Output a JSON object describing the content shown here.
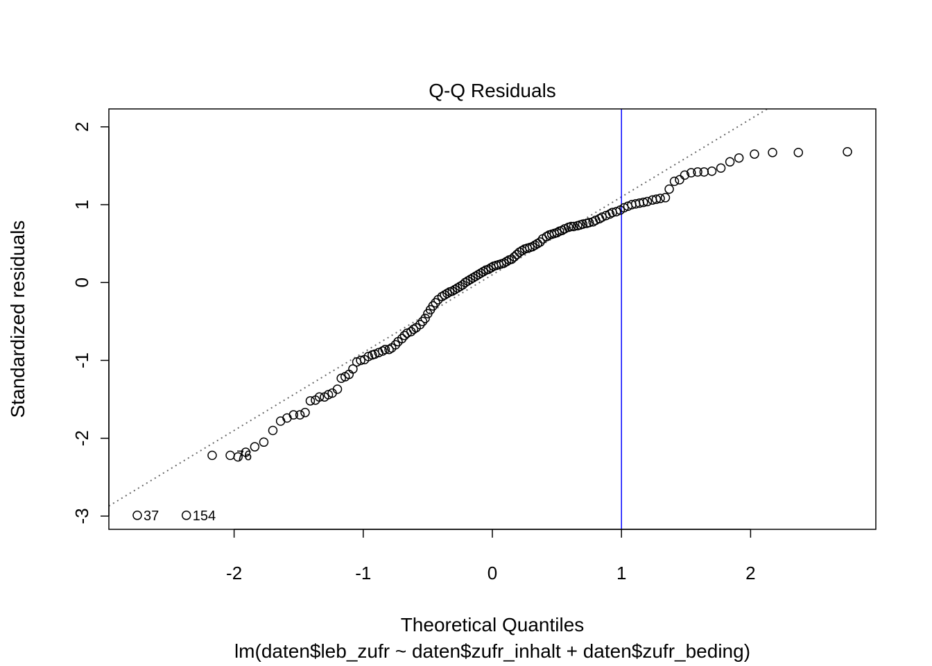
{
  "chart_data": {
    "type": "scatter",
    "title": "Q-Q Residuals",
    "xlabel": "Theoretical Quantiles",
    "ylabel": "Standardized residuals",
    "subtitle": "lm(daten$leb_zufr ~ daten$zufr_inhalt + daten$zufr_beding)",
    "xlim": [
      -2.97,
      2.97
    ],
    "ylim": [
      -3.17,
      2.23
    ],
    "xticks": [
      -2,
      -1,
      0,
      1,
      2
    ],
    "yticks": [
      -3,
      -2,
      -1,
      0,
      1,
      2
    ],
    "xtick_labels": [
      "-2",
      "-1",
      "0",
      "1",
      "2"
    ],
    "ytick_labels": [
      "-3",
      "-2",
      "-1",
      "0",
      "1",
      "2"
    ],
    "reference_line": {
      "style": "dotted",
      "color": "#666666",
      "intercept": 0.1,
      "slope": 1.0
    },
    "vline": {
      "x": 1.0,
      "color": "#0000ff"
    },
    "point_labels": [
      {
        "text": "37",
        "x": -2.75,
        "y": -2.99
      },
      {
        "text": "154",
        "x": -2.37,
        "y": -2.99
      },
      {
        "text": "76",
        "x": -2.03,
        "y": -2.22
      }
    ],
    "points": {
      "x": [
        -2.75,
        -2.37,
        -2.17,
        -2.03,
        -1.97,
        -1.91,
        -1.84,
        -1.77,
        -1.7,
        -1.64,
        -1.59,
        -1.54,
        -1.49,
        -1.45,
        -1.41,
        -1.37,
        -1.34,
        -1.3,
        -1.27,
        -1.24,
        -1.2,
        -1.17,
        -1.14,
        -1.11,
        -1.08,
        -1.05,
        -1.02,
        -0.99,
        -0.96,
        -0.93,
        -0.91,
        -0.88,
        -0.85,
        -0.83,
        -0.8,
        -0.78,
        -0.75,
        -0.73,
        -0.7,
        -0.68,
        -0.66,
        -0.63,
        -0.61,
        -0.59,
        -0.56,
        -0.54,
        -0.52,
        -0.5,
        -0.48,
        -0.46,
        -0.44,
        -0.42,
        -0.39,
        -0.37,
        -0.35,
        -0.33,
        -0.31,
        -0.29,
        -0.27,
        -0.25,
        -0.23,
        -0.21,
        -0.19,
        -0.17,
        -0.15,
        -0.13,
        -0.11,
        -0.09,
        -0.07,
        -0.05,
        -0.03,
        -0.01,
        0.01,
        0.03,
        0.05,
        0.07,
        0.09,
        0.11,
        0.13,
        0.15,
        0.17,
        0.19,
        0.21,
        0.23,
        0.25,
        0.27,
        0.29,
        0.31,
        0.33,
        0.35,
        0.37,
        0.39,
        0.42,
        0.44,
        0.46,
        0.48,
        0.5,
        0.52,
        0.54,
        0.56,
        0.59,
        0.61,
        0.63,
        0.66,
        0.68,
        0.7,
        0.73,
        0.75,
        0.78,
        0.8,
        0.83,
        0.85,
        0.88,
        0.91,
        0.93,
        0.96,
        0.99,
        1.02,
        1.05,
        1.08,
        1.11,
        1.14,
        1.17,
        1.2,
        1.24,
        1.27,
        1.3,
        1.34,
        1.37,
        1.41,
        1.45,
        1.49,
        1.54,
        1.59,
        1.64,
        1.7,
        1.77,
        1.84,
        1.91,
        2.03,
        2.17,
        2.37,
        2.75
      ],
      "y": [
        -2.99,
        -2.99,
        -2.22,
        -2.22,
        -2.24,
        -2.18,
        -2.11,
        -2.05,
        -1.9,
        -1.78,
        -1.74,
        -1.7,
        -1.7,
        -1.67,
        -1.52,
        -1.51,
        -1.47,
        -1.47,
        -1.44,
        -1.42,
        -1.37,
        -1.23,
        -1.21,
        -1.18,
        -1.11,
        -1.02,
        -1.0,
        -0.99,
        -0.95,
        -0.93,
        -0.92,
        -0.9,
        -0.88,
        -0.86,
        -0.86,
        -0.84,
        -0.8,
        -0.76,
        -0.72,
        -0.68,
        -0.65,
        -0.63,
        -0.6,
        -0.58,
        -0.54,
        -0.5,
        -0.46,
        -0.4,
        -0.35,
        -0.3,
        -0.26,
        -0.22,
        -0.18,
        -0.16,
        -0.14,
        -0.12,
        -0.11,
        -0.09,
        -0.07,
        -0.05,
        -0.03,
        0.0,
        0.02,
        0.04,
        0.06,
        0.08,
        0.1,
        0.12,
        0.14,
        0.16,
        0.17,
        0.19,
        0.21,
        0.22,
        0.23,
        0.24,
        0.25,
        0.27,
        0.29,
        0.3,
        0.33,
        0.36,
        0.39,
        0.41,
        0.43,
        0.44,
        0.45,
        0.46,
        0.48,
        0.5,
        0.52,
        0.56,
        0.59,
        0.61,
        0.62,
        0.63,
        0.64,
        0.66,
        0.67,
        0.69,
        0.71,
        0.72,
        0.72,
        0.73,
        0.74,
        0.75,
        0.76,
        0.77,
        0.78,
        0.8,
        0.82,
        0.84,
        0.86,
        0.88,
        0.9,
        0.91,
        0.93,
        0.96,
        0.98,
        1.0,
        1.01,
        1.02,
        1.03,
        1.04,
        1.06,
        1.07,
        1.08,
        1.09,
        1.2,
        1.3,
        1.32,
        1.38,
        1.41,
        1.42,
        1.42,
        1.43,
        1.47,
        1.55,
        1.6,
        1.65,
        1.67,
        1.67,
        1.68
      ]
    }
  }
}
